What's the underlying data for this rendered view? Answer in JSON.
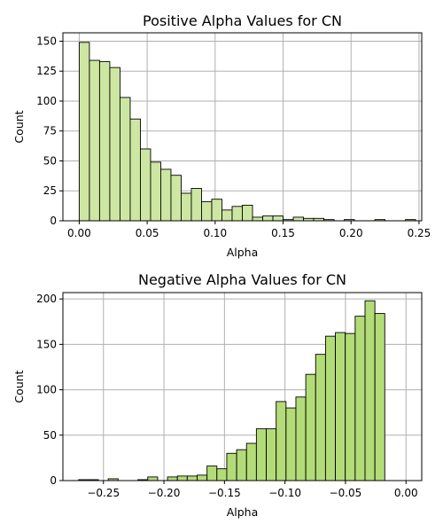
{
  "chart_data": [
    {
      "type": "bar",
      "title": "Positive Alpha Values for CN",
      "xlabel": "Alpha",
      "ylabel": "Count",
      "color": "#cde7a2",
      "grid": true,
      "xlim": [
        -0.012,
        0.252
      ],
      "ylim": [
        0,
        157
      ],
      "xticks": [
        0.0,
        0.05,
        0.1,
        0.15,
        0.2,
        0.25
      ],
      "xtick_labels": [
        "0.00",
        "0.05",
        "0.10",
        "0.15",
        "0.20",
        "0.25"
      ],
      "yticks": [
        0,
        25,
        50,
        75,
        100,
        125,
        150
      ],
      "bin_start": 0.0,
      "bin_width": 0.0075,
      "values": [
        149,
        134,
        133,
        128,
        103,
        85,
        60,
        49,
        43,
        38,
        23,
        27,
        16,
        18,
        9,
        12,
        13,
        3,
        4,
        4,
        1,
        3,
        2,
        2,
        1,
        0,
        1,
        0,
        0,
        1,
        0,
        0,
        1
      ]
    },
    {
      "type": "bar",
      "title": "Negative Alpha Values for CN",
      "xlabel": "Alpha",
      "ylabel": "Count",
      "color": "#b3dc78",
      "grid": true,
      "xlim": [
        -0.2835,
        0.013
      ],
      "ylim": [
        0,
        207
      ],
      "xticks": [
        -0.25,
        -0.2,
        -0.15,
        -0.1,
        -0.05,
        0.0
      ],
      "xtick_labels": [
        "−0.25",
        "−0.20",
        "−0.15",
        "−0.10",
        "−0.05",
        "0.00"
      ],
      "yticks": [
        0,
        50,
        100,
        150,
        200
      ],
      "bin_start": -0.2705,
      "bin_width": 0.00816,
      "values": [
        1,
        1,
        0,
        2,
        0,
        0,
        1,
        4,
        0,
        4,
        5,
        5,
        6,
        16,
        13,
        30,
        34,
        41,
        57,
        57,
        87,
        80,
        92,
        117,
        139,
        159,
        163,
        162,
        181,
        198,
        184
      ]
    }
  ]
}
